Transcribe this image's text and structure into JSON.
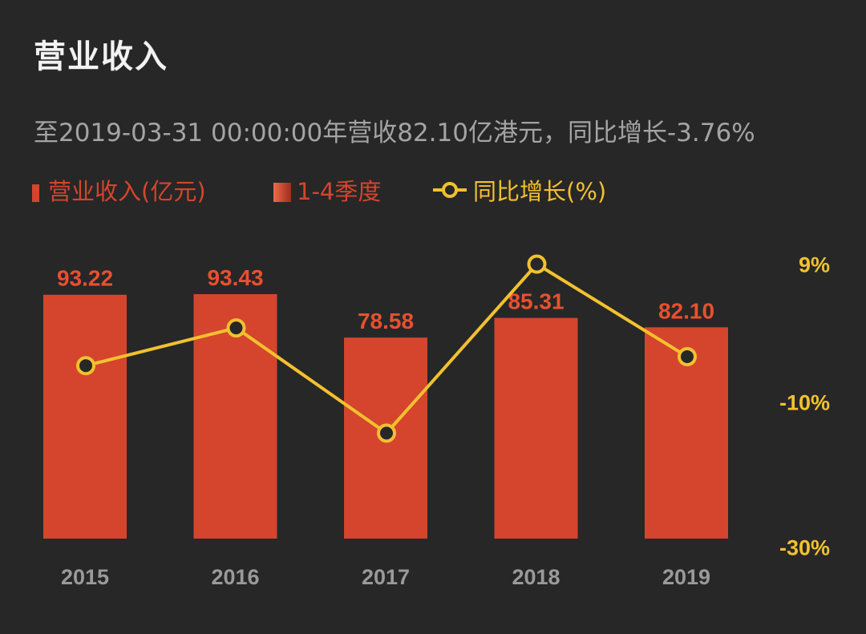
{
  "title": "营业收入",
  "subtitle": "至2019-03-31 00:00:00年营收82.10亿港元，同比增长-3.76%",
  "legend": [
    {
      "label": "营业收入(亿元)",
      "color": "#d5452d"
    },
    {
      "label": "1-4季度",
      "color": "#d5452d"
    },
    {
      "label": "同比增长(%)",
      "color": "#f2c12e"
    }
  ],
  "colors": {
    "bar": "#d5452d",
    "line": "#f2c12e",
    "bar_label": "#e8502f",
    "axis_text": "#9a9a9a"
  },
  "chart_data": {
    "type": "bar",
    "categories": [
      "2015",
      "2016",
      "2017",
      "2018",
      "2019"
    ],
    "series": [
      {
        "name": "营业收入(亿元)",
        "type": "bar",
        "values": [
          93.22,
          93.43,
          78.58,
          85.31,
          82.1
        ],
        "labels": [
          "93.22",
          "93.43",
          "78.58",
          "85.31",
          "82.10"
        ]
      },
      {
        "name": "同比增长(%)",
        "type": "line",
        "axis": "right",
        "values": [
          -5.0,
          0.2,
          -14.3,
          9.0,
          -3.76
        ]
      }
    ],
    "y_right": {
      "ticks": [
        "9%",
        "-10%",
        "-30%"
      ],
      "tick_values": [
        9,
        -10,
        -30
      ]
    }
  }
}
